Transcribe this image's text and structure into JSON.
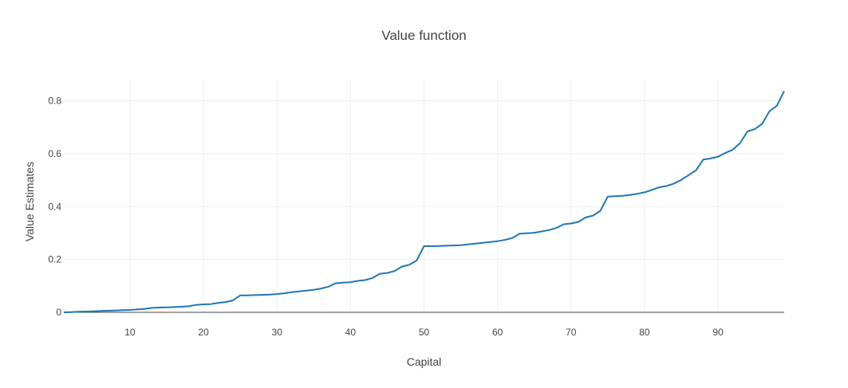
{
  "chart_data": {
    "type": "line",
    "title": "Value function",
    "xlabel": "Capital",
    "ylabel": "Value Estimates",
    "xlim": [
      1,
      99
    ],
    "ylim": [
      0,
      0.88
    ],
    "grid": true,
    "x_ticks": [
      10,
      20,
      30,
      40,
      50,
      60,
      70,
      80,
      90
    ],
    "x_tick_labels": [
      "10",
      "20",
      "30",
      "40",
      "50",
      "60",
      "70",
      "80",
      "90"
    ],
    "y_ticks": [
      0,
      0.2,
      0.4,
      0.6,
      0.8
    ],
    "y_tick_labels": [
      "0",
      "0.2",
      "0.4",
      "0.6",
      "0.8"
    ],
    "colors": {
      "line": "#1f77b4",
      "grid": "#eeeeee",
      "axis": "#444444",
      "text": "#444444"
    },
    "series": [
      {
        "x": [
          1,
          2,
          3,
          4,
          5,
          6,
          7,
          8,
          9,
          10,
          11,
          12,
          13,
          14,
          15,
          16,
          17,
          18,
          19,
          20,
          21,
          22,
          23,
          24,
          25,
          26,
          27,
          28,
          29,
          30,
          31,
          32,
          33,
          34,
          35,
          36,
          37,
          38,
          39,
          40,
          41,
          42,
          43,
          44,
          45,
          46,
          47,
          48,
          49,
          50,
          51,
          52,
          53,
          54,
          55,
          56,
          57,
          58,
          59,
          60,
          61,
          62,
          63,
          64,
          65,
          66,
          67,
          68,
          69,
          70,
          71,
          72,
          73,
          74,
          75,
          76,
          77,
          78,
          79,
          80,
          81,
          82,
          83,
          84,
          85,
          86,
          87,
          88,
          89,
          90,
          91,
          92,
          93,
          94,
          95,
          96,
          97,
          98,
          99
        ],
        "values": [
          0.0,
          0.001,
          0.002,
          0.003,
          0.004,
          0.005,
          0.006,
          0.007,
          0.008,
          0.009,
          0.011,
          0.013,
          0.017,
          0.018,
          0.019,
          0.02,
          0.021,
          0.023,
          0.028,
          0.03,
          0.031,
          0.036,
          0.039,
          0.045,
          0.064,
          0.064,
          0.065,
          0.066,
          0.067,
          0.069,
          0.072,
          0.076,
          0.079,
          0.082,
          0.085,
          0.09,
          0.097,
          0.11,
          0.112,
          0.114,
          0.119,
          0.122,
          0.13,
          0.146,
          0.149,
          0.156,
          0.173,
          0.18,
          0.196,
          0.25,
          0.25,
          0.251,
          0.252,
          0.253,
          0.254,
          0.257,
          0.26,
          0.263,
          0.266,
          0.269,
          0.274,
          0.281,
          0.297,
          0.299,
          0.301,
          0.306,
          0.311,
          0.319,
          0.333,
          0.336,
          0.342,
          0.359,
          0.366,
          0.384,
          0.438,
          0.439,
          0.441,
          0.444,
          0.448,
          0.454,
          0.463,
          0.473,
          0.478,
          0.487,
          0.501,
          0.519,
          0.537,
          0.578,
          0.582,
          0.589,
          0.603,
          0.615,
          0.64,
          0.684,
          0.693,
          0.713,
          0.761,
          0.781,
          0.837
        ]
      }
    ]
  }
}
